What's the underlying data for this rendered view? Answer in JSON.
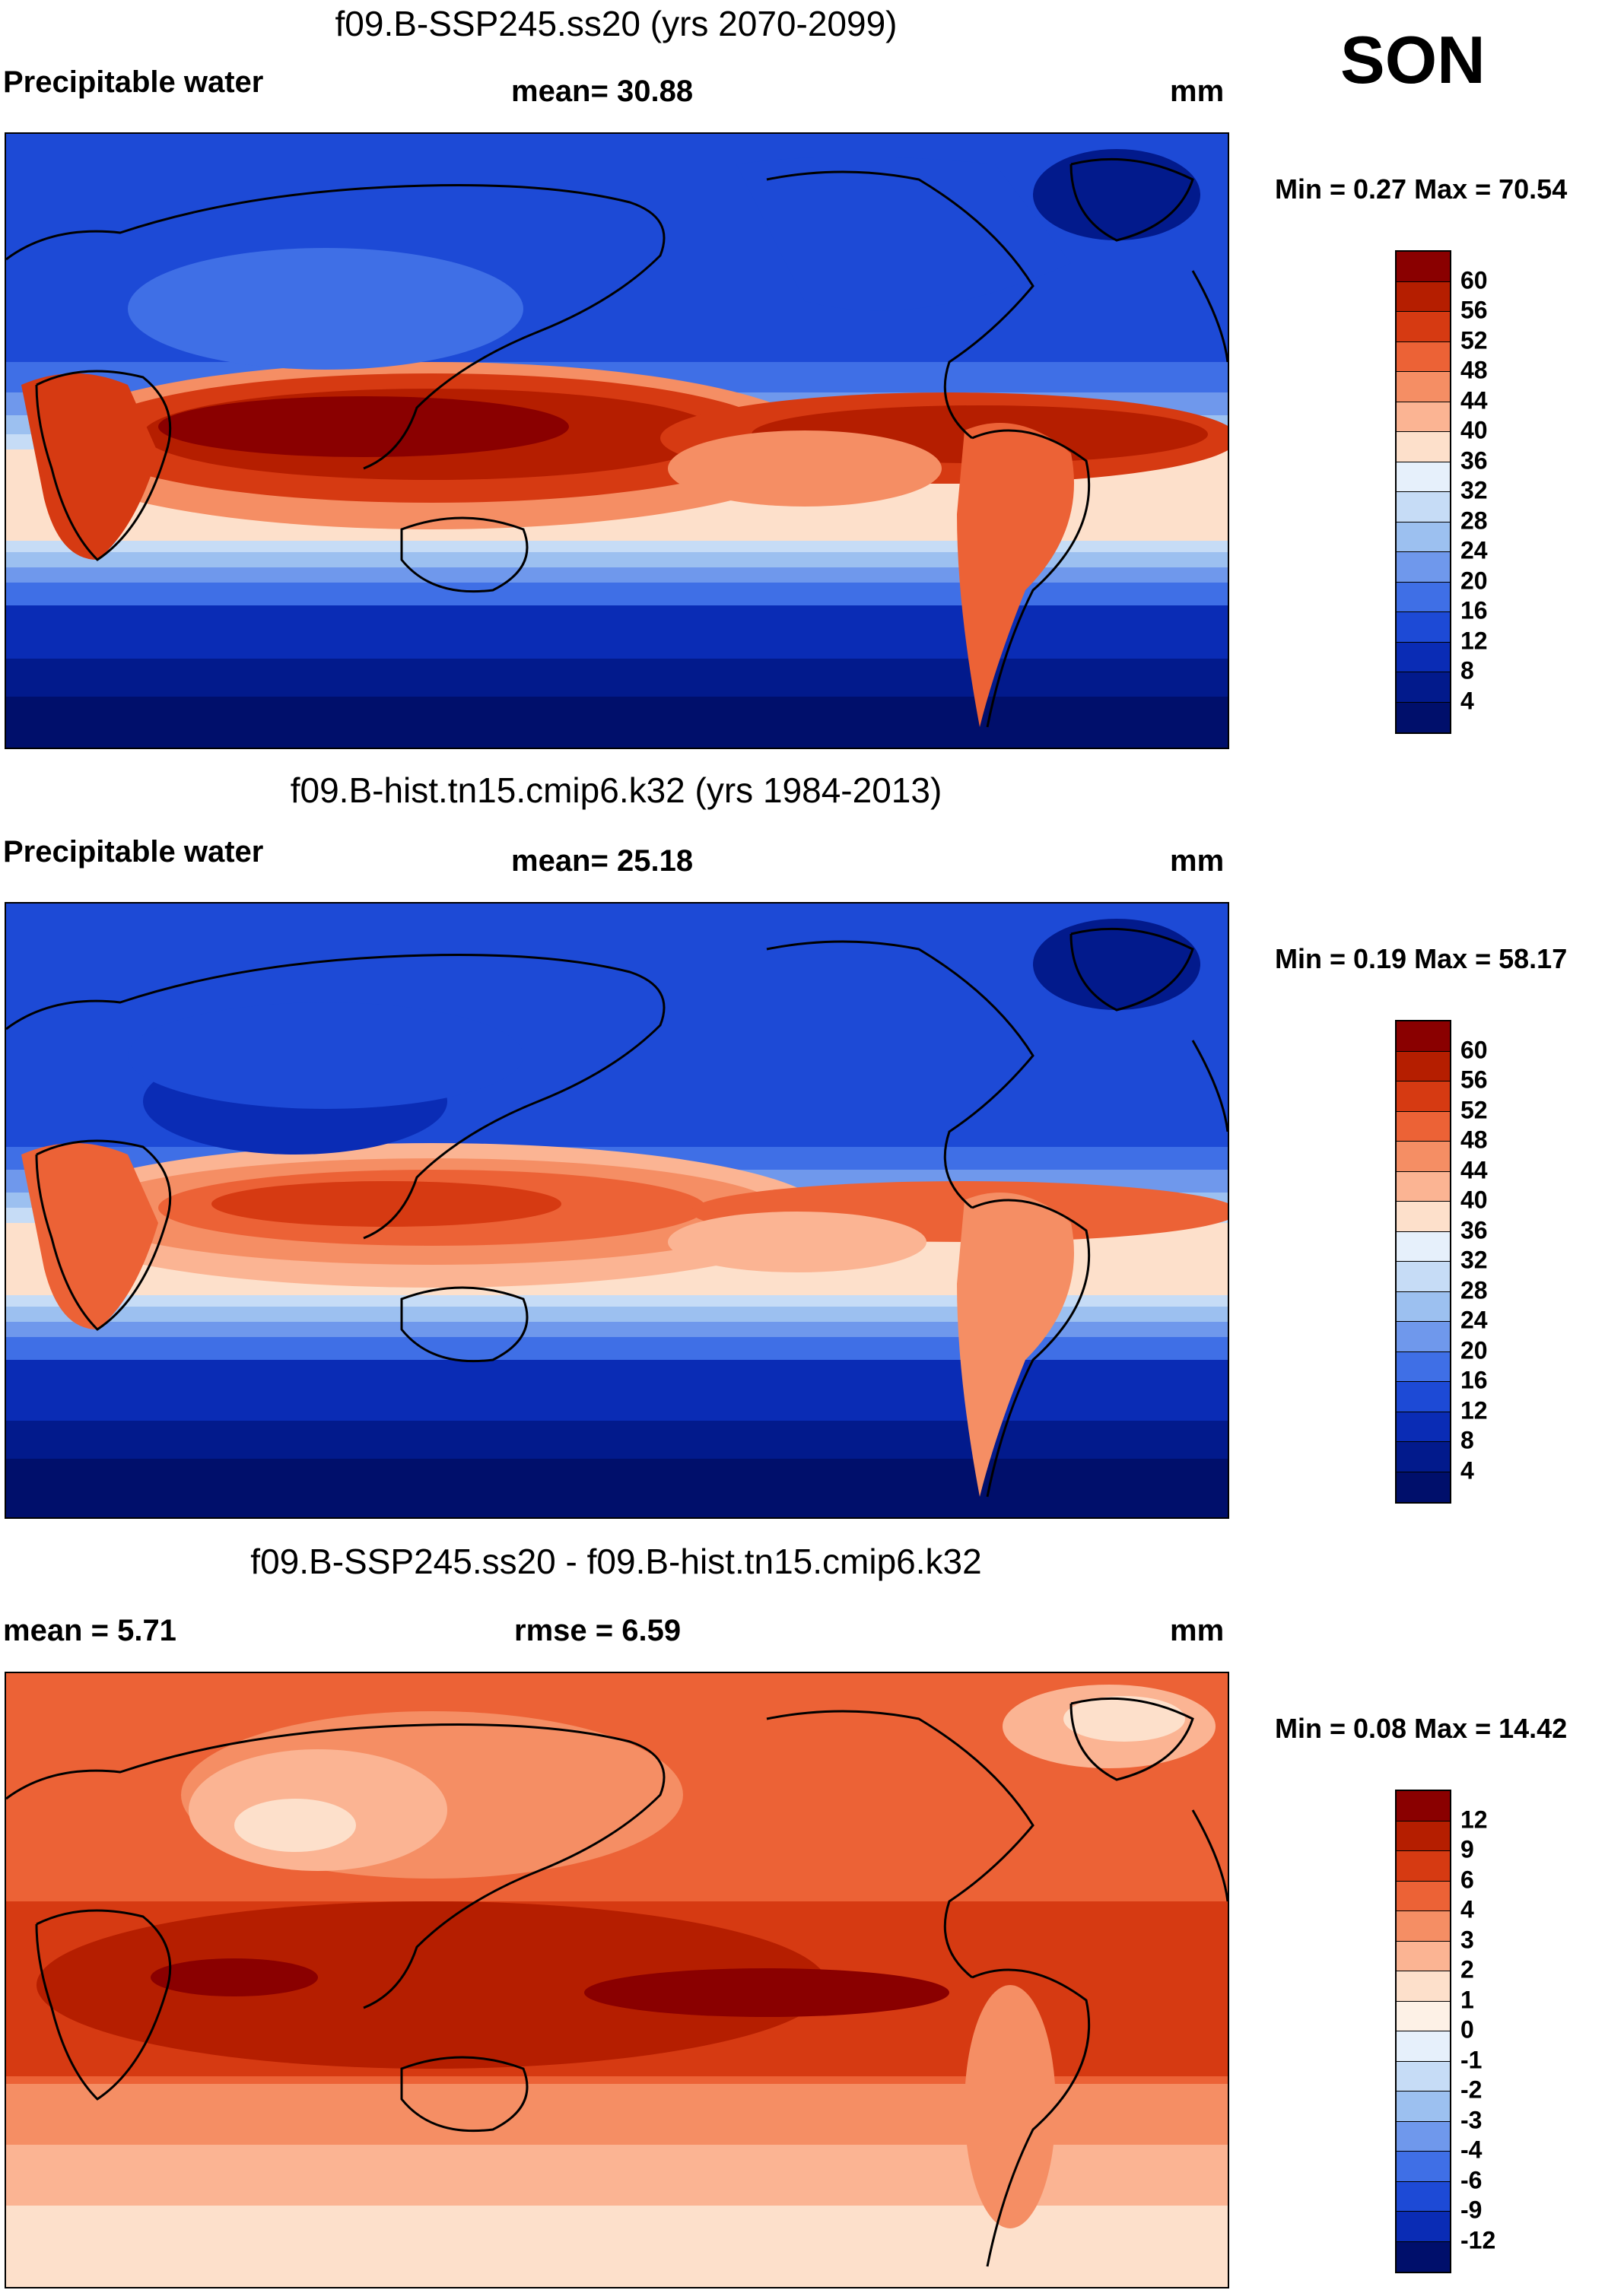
{
  "season": "SON",
  "panels": [
    {
      "title": "f09.B-SSP245.ss20 (yrs 2070-2099)",
      "left_label": "Precipitable water",
      "mid_label": "mean=  30.88",
      "units": "mm",
      "min_max": "Min =   0.27 Max =  70.54",
      "colorbar": {
        "ticks": [
          "60",
          "56",
          "52",
          "48",
          "44",
          "40",
          "36",
          "32",
          "28",
          "24",
          "20",
          "16",
          "12",
          "8",
          "4"
        ],
        "colors": [
          "#8a0000",
          "#b51e00",
          "#d63a12",
          "#ec6236",
          "#f58e64",
          "#fbb493",
          "#fde0cb",
          "#e6f0fb",
          "#c6dcf6",
          "#9cc0f0",
          "#6f98ec",
          "#3f6fe6",
          "#1d4ad6",
          "#0a2cb5",
          "#021a8c",
          "#000f6b"
        ]
      }
    },
    {
      "title": "f09.B-hist.tn15.cmip6.k32 (yrs 1984-2013)",
      "left_label": "Precipitable water",
      "mid_label": "mean=  25.18",
      "units": "mm",
      "min_max": "Min =   0.19 Max =  58.17",
      "colorbar": {
        "ticks": [
          "60",
          "56",
          "52",
          "48",
          "44",
          "40",
          "36",
          "32",
          "28",
          "24",
          "20",
          "16",
          "12",
          "8",
          "4"
        ],
        "colors": [
          "#8a0000",
          "#b51e00",
          "#d63a12",
          "#ec6236",
          "#f58e64",
          "#fbb493",
          "#fde0cb",
          "#e6f0fb",
          "#c6dcf6",
          "#9cc0f0",
          "#6f98ec",
          "#3f6fe6",
          "#1d4ad6",
          "#0a2cb5",
          "#021a8c",
          "#000f6b"
        ]
      }
    },
    {
      "title": "f09.B-SSP245.ss20 - f09.B-hist.tn15.cmip6.k32",
      "left_label": "mean =   5.71",
      "mid_label": "rmse =   6.59",
      "units": "mm",
      "min_max": "Min =   0.08 Max =  14.42",
      "colorbar": {
        "ticks": [
          "12",
          "9",
          "6",
          "4",
          "3",
          "2",
          "1",
          "0",
          "-1",
          "-2",
          "-3",
          "-4",
          "-6",
          "-9",
          "-12"
        ],
        "colors": [
          "#8a0000",
          "#b51e00",
          "#d63a12",
          "#ec6236",
          "#f58e64",
          "#fbb493",
          "#fde0cb",
          "#fdf1e6",
          "#e6f0fb",
          "#c6dcf6",
          "#9cc0f0",
          "#6f98ec",
          "#3f6fe6",
          "#1d4ad6",
          "#0a2cb5",
          "#000f6b"
        ]
      }
    }
  ]
}
